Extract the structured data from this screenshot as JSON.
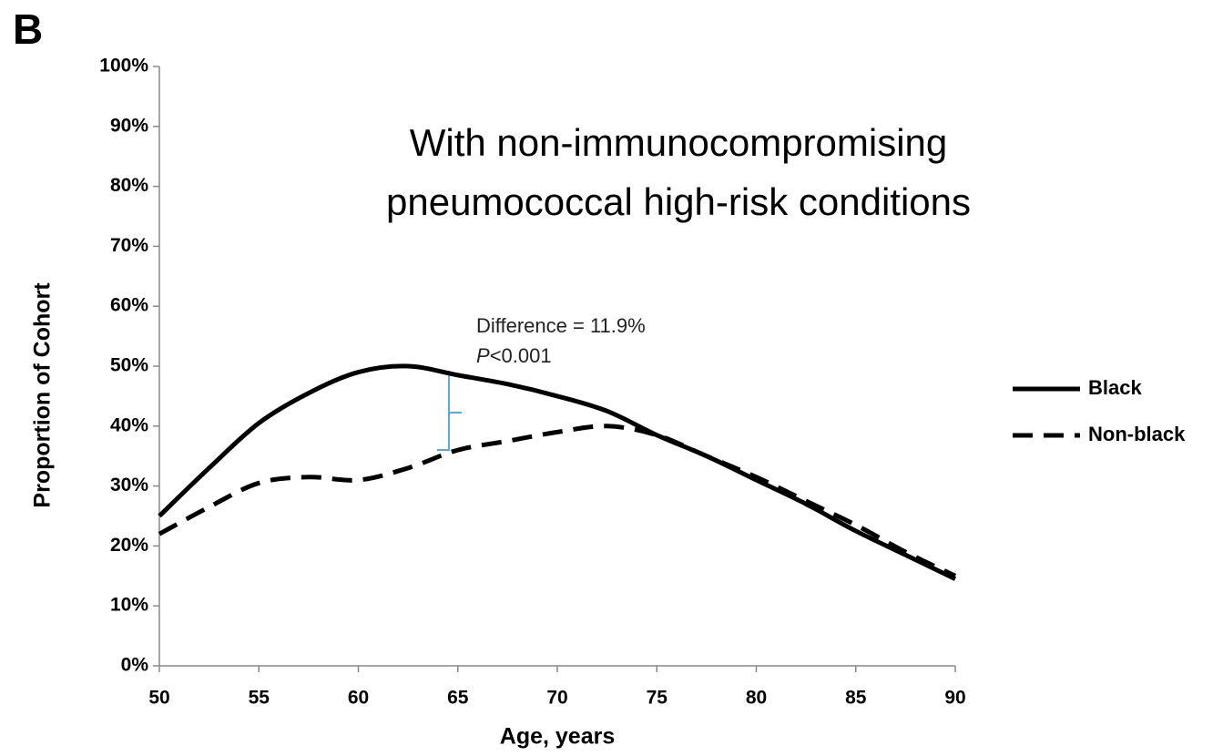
{
  "panel_label": "B",
  "chart_data": {
    "type": "line",
    "title_lines": [
      "With non-immunocompromising",
      "pneumococcal high-risk conditions"
    ],
    "x_label": "Age, years",
    "y_label": "Proportion of Cohort",
    "x": [
      50,
      52.5,
      55,
      57.5,
      60,
      62.5,
      65,
      67.5,
      70,
      72.5,
      75,
      77.5,
      80,
      82.5,
      85,
      87.5,
      90
    ],
    "series": [
      {
        "name": "Black",
        "color": "#000000",
        "dash": "solid",
        "values": [
          25,
          33,
          40.5,
          45.5,
          49,
          50,
          48.5,
          47,
          45,
          42.5,
          38.5,
          35,
          31,
          27,
          22.5,
          18.5,
          14.5
        ]
      },
      {
        "name": "Non-black",
        "color": "#000000",
        "dash": "dashed",
        "values": [
          22,
          26.5,
          30.5,
          31.5,
          31,
          33,
          36,
          37.5,
          39,
          40,
          38.5,
          35,
          31.5,
          27.5,
          23.5,
          19,
          15
        ]
      }
    ],
    "xlim": [
      50,
      90
    ],
    "xticks": [
      50,
      55,
      60,
      65,
      70,
      75,
      80,
      85,
      90
    ],
    "ylim": [
      0,
      100
    ],
    "yticks": [
      {
        "value": 0,
        "label": "0%"
      },
      {
        "value": 10,
        "label": "10%"
      },
      {
        "value": 20,
        "label": "20%"
      },
      {
        "value": 30,
        "label": "30%"
      },
      {
        "value": 40,
        "label": "40%"
      },
      {
        "value": 50,
        "label": "50%"
      },
      {
        "value": 60,
        "label": "60%"
      },
      {
        "value": 70,
        "label": "70%"
      },
      {
        "value": 80,
        "label": "80%"
      },
      {
        "value": 90,
        "label": "90%"
      },
      {
        "value": 100,
        "label": "100%"
      }
    ],
    "grid": false,
    "legend": "right",
    "annotations": [
      "Difference = 11.9%",
      "P<0.001"
    ]
  }
}
